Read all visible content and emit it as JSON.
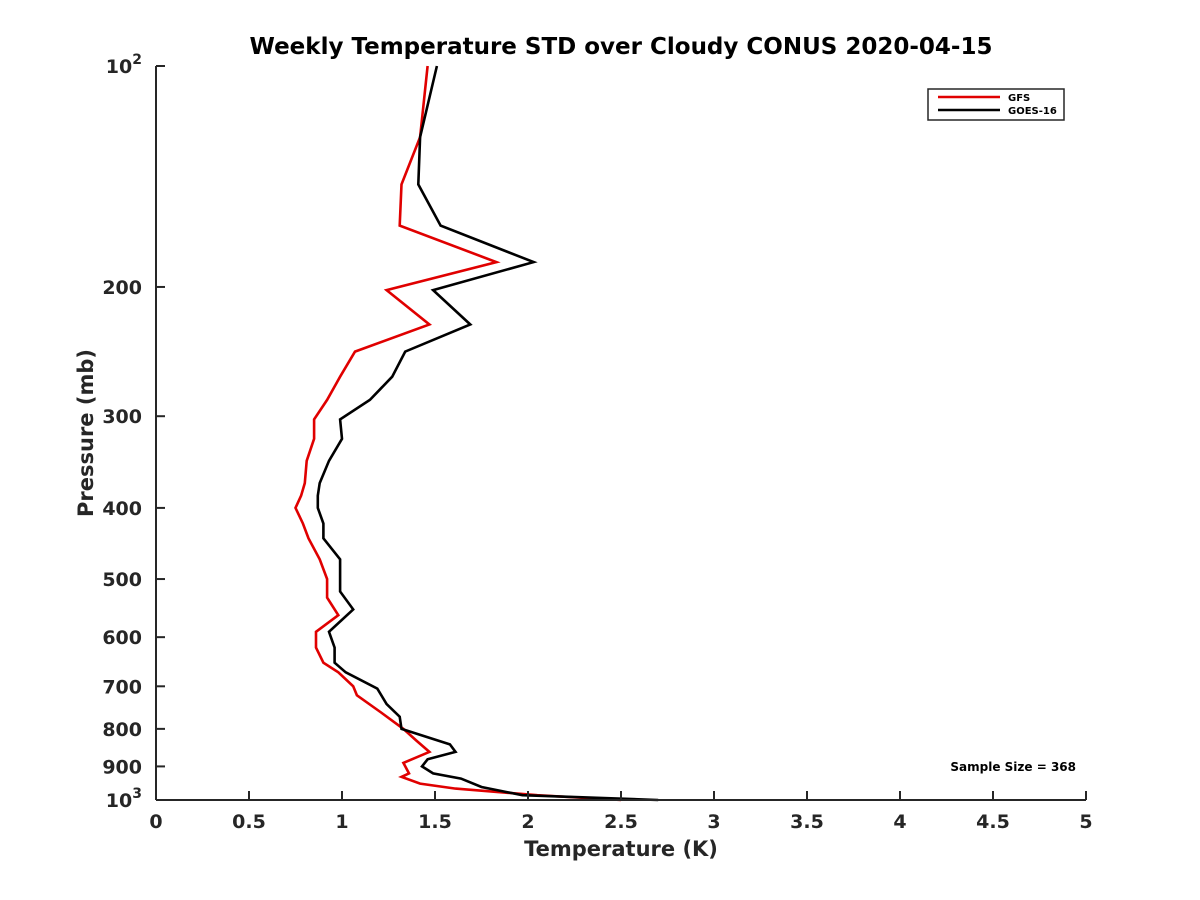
{
  "chart_data": {
    "type": "line",
    "title": "Weekly Temperature STD over Cloudy CONUS 2020-04-15",
    "xlabel": "Temperature (K)",
    "ylabel": "Pressure (mb)",
    "xlim": [
      0,
      5
    ],
    "ylim": [
      100,
      1000
    ],
    "yscale": "log",
    "yreversed": true,
    "grid": false,
    "x_ticks": [
      0,
      0.5,
      1,
      1.5,
      2,
      2.5,
      3,
      3.5,
      4,
      4.5,
      5
    ],
    "x_tick_labels": [
      "0",
      "0.5",
      "1",
      "1.5",
      "2",
      "2.5",
      "3",
      "3.5",
      "4",
      "4.5",
      "5"
    ],
    "y_ticks": [
      100,
      200,
      300,
      400,
      500,
      600,
      700,
      800,
      900,
      1000
    ],
    "y_tick_labels": [
      {
        "base": "10",
        "exp": "2"
      },
      {
        "base": "200",
        "exp": ""
      },
      {
        "base": "300",
        "exp": ""
      },
      {
        "base": "400",
        "exp": ""
      },
      {
        "base": "500",
        "exp": ""
      },
      {
        "base": "600",
        "exp": ""
      },
      {
        "base": "700",
        "exp": ""
      },
      {
        "base": "800",
        "exp": ""
      },
      {
        "base": "900",
        "exp": ""
      },
      {
        "base": "10",
        "exp": "3"
      }
    ],
    "legend_position": "top-right",
    "annotation": "Sample Size = 368",
    "series": [
      {
        "name": "GFS",
        "color": "#e00000",
        "points": [
          [
            1.46,
            100
          ],
          [
            1.42,
            125
          ],
          [
            1.32,
            145
          ],
          [
            1.31,
            165
          ],
          [
            1.83,
            185
          ],
          [
            1.24,
            202
          ],
          [
            1.47,
            225
          ],
          [
            1.07,
            245
          ],
          [
            0.99,
            265
          ],
          [
            0.92,
            285
          ],
          [
            0.85,
            303
          ],
          [
            0.85,
            322
          ],
          [
            0.81,
            345
          ],
          [
            0.8,
            370
          ],
          [
            0.78,
            385
          ],
          [
            0.75,
            400
          ],
          [
            0.79,
            420
          ],
          [
            0.82,
            440
          ],
          [
            0.88,
            470
          ],
          [
            0.92,
            500
          ],
          [
            0.92,
            530
          ],
          [
            0.98,
            560
          ],
          [
            0.86,
            590
          ],
          [
            0.86,
            620
          ],
          [
            0.9,
            650
          ],
          [
            0.98,
            670
          ],
          [
            1.06,
            700
          ],
          [
            1.08,
            720
          ],
          [
            1.21,
            760
          ],
          [
            1.33,
            800
          ],
          [
            1.4,
            830
          ],
          [
            1.47,
            860
          ],
          [
            1.33,
            890
          ],
          [
            1.36,
            920
          ],
          [
            1.32,
            930
          ],
          [
            1.42,
            950
          ],
          [
            1.61,
            965
          ],
          [
            2.05,
            985
          ],
          [
            2.5,
            1000
          ]
        ]
      },
      {
        "name": "GOES-16",
        "color": "#000000",
        "points": [
          [
            1.51,
            100
          ],
          [
            1.42,
            125
          ],
          [
            1.41,
            145
          ],
          [
            1.53,
            165
          ],
          [
            2.03,
            185
          ],
          [
            1.49,
            202
          ],
          [
            1.69,
            225
          ],
          [
            1.34,
            245
          ],
          [
            1.27,
            265
          ],
          [
            1.15,
            285
          ],
          [
            0.99,
            303
          ],
          [
            1.0,
            322
          ],
          [
            0.93,
            345
          ],
          [
            0.88,
            370
          ],
          [
            0.87,
            385
          ],
          [
            0.87,
            400
          ],
          [
            0.9,
            420
          ],
          [
            0.9,
            440
          ],
          [
            0.99,
            470
          ],
          [
            0.99,
            500
          ],
          [
            0.99,
            520
          ],
          [
            1.06,
            550
          ],
          [
            0.93,
            590
          ],
          [
            0.96,
            620
          ],
          [
            0.96,
            650
          ],
          [
            1.02,
            670
          ],
          [
            1.19,
            705
          ],
          [
            1.24,
            740
          ],
          [
            1.31,
            770
          ],
          [
            1.32,
            800
          ],
          [
            1.58,
            840
          ],
          [
            1.61,
            860
          ],
          [
            1.46,
            880
          ],
          [
            1.43,
            900
          ],
          [
            1.49,
            920
          ],
          [
            1.64,
            935
          ],
          [
            1.75,
            960
          ],
          [
            1.97,
            985
          ],
          [
            2.7,
            1000
          ]
        ]
      }
    ]
  }
}
